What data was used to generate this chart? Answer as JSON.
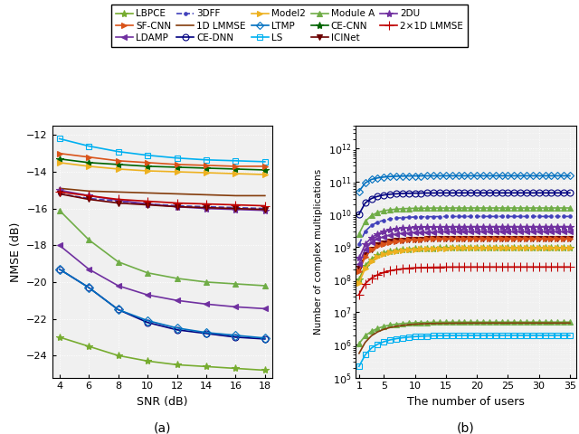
{
  "snr": [
    4,
    6,
    8,
    10,
    12,
    14,
    16,
    18
  ],
  "users": [
    1,
    2,
    3,
    4,
    5,
    6,
    7,
    8,
    9,
    10,
    11,
    12,
    13,
    14,
    15,
    16,
    17,
    18,
    19,
    20,
    21,
    22,
    23,
    24,
    25,
    26,
    27,
    28,
    29,
    30,
    31,
    32,
    33,
    34,
    35
  ],
  "nmse": {
    "LBPCE": [
      -23.0,
      -23.5,
      -24.0,
      -24.3,
      -24.5,
      -24.6,
      -24.7,
      -24.8
    ],
    "CE-DNN": [
      -19.3,
      -20.3,
      -21.5,
      -22.2,
      -22.6,
      -22.8,
      -23.0,
      -23.1
    ],
    "CE-CNN": [
      -13.3,
      -13.5,
      -13.6,
      -13.7,
      -13.75,
      -13.8,
      -13.85,
      -13.9
    ],
    "SF-CNN": [
      -13.0,
      -13.2,
      -13.4,
      -13.5,
      -13.6,
      -13.65,
      -13.7,
      -13.7
    ],
    "Model2": [
      -13.5,
      -13.7,
      -13.85,
      -13.95,
      -14.0,
      -14.05,
      -14.1,
      -14.15
    ],
    "ICINet": [
      -15.2,
      -15.5,
      -15.7,
      -15.8,
      -15.9,
      -15.95,
      -16.0,
      -16.05
    ],
    "LDAMP": [
      -18.0,
      -19.3,
      -20.2,
      -20.7,
      -21.0,
      -21.2,
      -21.35,
      -21.45
    ],
    "LTMP": [
      -19.3,
      -20.3,
      -21.5,
      -22.1,
      -22.5,
      -22.75,
      -22.9,
      -23.05
    ],
    "2DU": [
      -15.0,
      -15.3,
      -15.55,
      -15.75,
      -15.9,
      -16.0,
      -16.05,
      -16.1
    ],
    "3DFF": [
      -15.2,
      -15.45,
      -15.6,
      -15.75,
      -15.85,
      -15.9,
      -15.95,
      -16.0
    ],
    "LS": [
      -12.2,
      -12.6,
      -12.9,
      -13.1,
      -13.25,
      -13.35,
      -13.4,
      -13.45
    ],
    "1D_LMMSE": [
      -14.9,
      -15.05,
      -15.1,
      -15.15,
      -15.2,
      -15.25,
      -15.3,
      -15.3
    ],
    "2x1D_LMMSE": [
      -15.1,
      -15.3,
      -15.5,
      -15.6,
      -15.7,
      -15.75,
      -15.8,
      -15.85
    ],
    "Module_A": [
      -16.1,
      -17.7,
      -18.9,
      -19.5,
      -19.8,
      -20.0,
      -20.1,
      -20.2
    ]
  },
  "series_info": {
    "LBPCE": {
      "color": "#77ac30",
      "marker": "*",
      "linestyle": "-",
      "markersize": 6,
      "hollow": false
    },
    "CE-DNN": {
      "color": "#000080",
      "marker": "o",
      "linestyle": "-",
      "markersize": 5,
      "hollow": true
    },
    "CE-CNN": {
      "color": "#006400",
      "marker": "*",
      "linestyle": "-",
      "markersize": 6,
      "hollow": false
    },
    "SF-CNN": {
      "color": "#d95319",
      "marker": ">",
      "linestyle": "-",
      "markersize": 5,
      "hollow": false
    },
    "Model2": {
      "color": "#edb120",
      "marker": ">",
      "linestyle": "-",
      "markersize": 5,
      "hollow": false
    },
    "ICINet": {
      "color": "#6b0000",
      "marker": "v",
      "linestyle": "-",
      "markersize": 5,
      "hollow": false
    },
    "LDAMP": {
      "color": "#7030a0",
      "marker": "<",
      "linestyle": "-",
      "markersize": 5,
      "hollow": false
    },
    "LTMP": {
      "color": "#0070c0",
      "marker": "D",
      "linestyle": "-",
      "markersize": 5,
      "hollow": true
    },
    "2DU": {
      "color": "#7030a0",
      "marker": "*",
      "linestyle": "-",
      "markersize": 6,
      "hollow": false
    },
    "3DFF": {
      "color": "#4040bb",
      "marker": ".",
      "linestyle": "--",
      "markersize": 5,
      "hollow": false
    },
    "LS": {
      "color": "#00b0f0",
      "marker": "s",
      "linestyle": "-",
      "markersize": 5,
      "hollow": true
    },
    "1D_LMMSE": {
      "color": "#843c0c",
      "marker": "-",
      "linestyle": "-",
      "markersize": 4,
      "hollow": false
    },
    "2x1D_LMMSE": {
      "color": "#c00000",
      "marker": "+",
      "linestyle": "-",
      "markersize": 7,
      "hollow": false
    },
    "Module_A": {
      "color": "#70ad47",
      "marker": "^",
      "linestyle": "-",
      "markersize": 5,
      "hollow": false
    }
  },
  "complexity_data": {
    "LTMP": [
      50000000000.0,
      90000000000.0,
      115000000000.0,
      128000000000.0,
      136000000000.0,
      141000000000.0,
      144000000000.0,
      145500000000.0,
      146500000000.0,
      147200000000.0,
      147600000000.0,
      147900000000.0,
      148100000000.0,
      148200000000.0,
      148300000000.0,
      148400000000.0,
      148400000000.0,
      148500000000.0,
      148500000000.0,
      148500000000.0,
      148500000000.0,
      148500000000.0,
      148500000000.0,
      148500000000.0,
      148500000000.0,
      148500000000.0,
      148500000000.0,
      148500000000.0,
      148500000000.0,
      148500000000.0,
      148500000000.0,
      148500000000.0,
      148500000000.0,
      148500000000.0,
      148500000000.0
    ],
    "CE-DNN": [
      10000000000.0,
      22000000000.0,
      30000000000.0,
      35000000000.0,
      38500000000.0,
      40500000000.0,
      41800000000.0,
      42700000000.0,
      43300000000.0,
      43700000000.0,
      44000000000.0,
      44200000000.0,
      44300000000.0,
      44400000000.0,
      44500000000.0,
      44500000000.0,
      44600000000.0,
      44600000000.0,
      44600000000.0,
      44600000000.0,
      44600000000.0,
      44600000000.0,
      44600000000.0,
      44600000000.0,
      44600000000.0,
      44600000000.0,
      44600000000.0,
      44600000000.0,
      44600000000.0,
      44600000000.0,
      44600000000.0,
      44600000000.0,
      44600000000.0,
      44600000000.0,
      44600000000.0
    ],
    "Module_A": [
      2500000000.0,
      6000000000.0,
      9000000000.0,
      11200000000.0,
      12700000000.0,
      13600000000.0,
      14200000000.0,
      14600000000.0,
      14900000000.0,
      15100000000.0,
      15200000000.0,
      15300000000.0,
      15350000000.0,
      15380000000.0,
      15400000000.0,
      15410000000.0,
      15420000000.0,
      15420000000.0,
      15430000000.0,
      15430000000.0,
      15430000000.0,
      15430000000.0,
      15430000000.0,
      15430000000.0,
      15430000000.0,
      15430000000.0,
      15430000000.0,
      15430000000.0,
      15430000000.0,
      15430000000.0,
      15430000000.0,
      15430000000.0,
      15430000000.0,
      15430000000.0,
      15430000000.0
    ],
    "3DFF": [
      1200000000.0,
      3000000000.0,
      4500000000.0,
      5700000000.0,
      6500000000.0,
      7100000000.0,
      7500000000.0,
      7800000000.0,
      8000000000.0,
      8150000000.0,
      8250000000.0,
      8320000000.0,
      8370000000.0,
      8400000000.0,
      8430000000.0,
      8450000000.0,
      8460000000.0,
      8470000000.0,
      8475000000.0,
      8480000000.0,
      8480000000.0,
      8480000000.0,
      8480000000.0,
      8480000000.0,
      8480000000.0,
      8480000000.0,
      8480000000.0,
      8480000000.0,
      8480000000.0,
      8480000000.0,
      8480000000.0,
      8480000000.0,
      8480000000.0,
      8480000000.0,
      8480000000.0
    ],
    "2DU": [
      450000000.0,
      1200000000.0,
      1900000000.0,
      2500000000.0,
      2950000000.0,
      3300000000.0,
      3550000000.0,
      3730000000.0,
      3860000000.0,
      3950000000.0,
      4010000000.0,
      4050000000.0,
      4080000000.0,
      4100000000.0,
      4110000000.0,
      4120000000.0,
      4125000000.0,
      4130000000.0,
      4132000000.0,
      4134000000.0,
      4135000000.0,
      4136000000.0,
      4136000000.0,
      4137000000.0,
      4137000000.0,
      4137000000.0,
      4137000000.0,
      4137000000.0,
      4137000000.0,
      4137000000.0,
      4137000000.0,
      4137000000.0,
      4137000000.0,
      4137000000.0,
      4137000000.0
    ],
    "LDAMP": [
      300000000.0,
      850000000.0,
      1350000000.0,
      1750000000.0,
      2050000000.0,
      2280000000.0,
      2450000000.0,
      2580000000.0,
      2670000000.0,
      2740000000.0,
      2790000000.0,
      2820000000.0,
      2845000000.0,
      2860000000.0,
      2870000000.0,
      2875000000.0,
      2880000000.0,
      2885000000.0,
      2887000000.0,
      2889000000.0,
      2890000000.0,
      2891000000.0,
      2892000000.0,
      2892000000.0,
      2892000000.0,
      2892000000.0,
      2892000000.0,
      2892000000.0,
      2892000000.0,
      2892000000.0,
      2892000000.0,
      2892000000.0,
      2892000000.0,
      2892000000.0,
      2892000000.0
    ],
    "SF-CNN": [
      180000000.0,
      500000000.0,
      800000000.0,
      1050000000.0,
      1240000000.0,
      1380000000.0,
      1490000000.0,
      1570000000.0,
      1630000000.0,
      1670000000.0,
      1700000000.0,
      1720000000.0,
      1735000000.0,
      1744000000.0,
      1750000000.0,
      1754000000.0,
      1757000000.0,
      1759000000.0,
      1760000000.0,
      1761000000.0,
      1762000000.0,
      1762000000.0,
      1763000000.0,
      1763000000.0,
      1763000000.0,
      1763000000.0,
      1763000000.0,
      1763000000.0,
      1763000000.0,
      1763000000.0,
      1763000000.0,
      1763000000.0,
      1763000000.0,
      1763000000.0,
      1763000000.0
    ],
    "ICINet": [
      220000000.0,
      550000000.0,
      850000000.0,
      1100000000.0,
      1280000000.0,
      1420000000.0,
      1520000000.0,
      1590000000.0,
      1640000000.0,
      1675000000.0,
      1700000000.0,
      1715000000.0,
      1726000000.0,
      1733000000.0,
      1738000000.0,
      1741000000.0,
      1743000000.0,
      1745000000.0,
      1746000000.0,
      1747000000.0,
      1747000000.0,
      1748000000.0,
      1748000000.0,
      1748000000.0,
      1748000000.0,
      1748000000.0,
      1748000000.0,
      1748000000.0,
      1748000000.0,
      1748000000.0,
      1748000000.0,
      1748000000.0,
      1748000000.0,
      1748000000.0,
      1748000000.0
    ],
    "Model2": [
      80000000.0,
      220000000.0,
      370000000.0,
      500000000.0,
      600000000.0,
      680000000.0,
      740000000.0,
      790000000.0,
      825000000.0,
      850000000.0,
      870000000.0,
      883000000.0,
      893000000.0,
      900000000.0,
      905000000.0,
      909000000.0,
      911000000.0,
      913000000.0,
      914000000.0,
      915000000.0,
      916000000.0,
      916500000.0,
      917000000.0,
      917000000.0,
      917000000.0,
      917000000.0,
      917000000.0,
      917000000.0,
      917000000.0,
      917000000.0,
      917000000.0,
      917000000.0,
      917000000.0,
      917000000.0,
      917000000.0
    ],
    "LBPCE": [
      100000000.0,
      270000000.0,
      420000000.0,
      550000000.0,
      650000000.0,
      720000000.0,
      780000000.0,
      820000000.0,
      850000000.0,
      870000000.0,
      885000000.0,
      895000000.0,
      902000000.0,
      907000000.0,
      910000000.0,
      913000000.0,
      914500000.0,
      915500000.0,
      916200000.0,
      916700000.0,
      917000000.0,
      917300000.0,
      917500000.0,
      917600000.0,
      917700000.0,
      917800000.0,
      917800000.0,
      917800000.0,
      917800000.0,
      917800000.0,
      917800000.0,
      917800000.0,
      917800000.0,
      917800000.0,
      917800000.0
    ],
    "2x1D_LMMSE": [
      35000000.0,
      75000000.0,
      110000000.0,
      140000000.0,
      165000000.0,
      185000000.0,
      200000000.0,
      212000000.0,
      221000000.0,
      227000000.0,
      231000000.0,
      234000000.0,
      236000000.0,
      238000000.0,
      239000000.0,
      239500000.0,
      240000000.0,
      240300000.0,
      240500000.0,
      240700000.0,
      240800000.0,
      240900000.0,
      240900000.0,
      241000000.0,
      241000000.0,
      241000000.0,
      241000000.0,
      241000000.0,
      241000000.0,
      241000000.0,
      241000000.0,
      241000000.0,
      241000000.0,
      241000000.0,
      241000000.0
    ],
    "1D_LMMSE": [
      550000.0,
      1200000.0,
      1900000.0,
      2500000.0,
      3000000.0,
      3400000.0,
      3700000.0,
      3950000.0,
      4150000.0,
      4300000.0,
      4400000.0,
      4470000.0,
      4520000.0,
      4560000.0,
      4590000.0,
      4610000.0,
      4625000.0,
      4635000.0,
      4642000.0,
      4647000.0,
      4651000.0,
      4654000.0,
      4656000.0,
      4657000.0,
      4658000.0,
      4659000.0,
      4659000.0,
      4660000.0,
      4660000.0,
      4660000.0,
      4660000.0,
      4660000.0,
      4660000.0,
      4660000.0,
      4660000.0
    ],
    "Module_A_low": [
      1100000.0,
      1900000.0,
      2600000.0,
      3200000.0,
      3700000.0,
      4050000.0,
      4300000.0,
      4500000.0,
      4650000.0,
      4750000.0,
      4820000.0,
      4870000.0,
      4900000.0,
      4930000.0,
      4945000.0,
      4955000.0,
      4962000.0,
      4967000.0,
      4970000.0,
      4973000.0,
      4975000.0,
      4976000.0,
      4977000.0,
      4978000.0,
      4978000.0,
      4979000.0,
      4979000.0,
      4979000.0,
      4979000.0,
      4979000.0,
      4979000.0,
      4979000.0,
      4979000.0,
      4979000.0,
      4979000.0
    ],
    "LS": [
      220000.0,
      500000.0,
      800000.0,
      1050000.0,
      1250000.0,
      1420000.0,
      1550000.0,
      1650000.0,
      1730000.0,
      1790000.0,
      1840000.0,
      1870000.0,
      1895000.0,
      1912000.0,
      1924000.0,
      1932000.0,
      1938000.0,
      1943000.0,
      1946000.0,
      1949000.0,
      1950000.0,
      1952000.0,
      1953000.0,
      1954000.0,
      1954000.0,
      1955000.0,
      1955000.0,
      1955000.0,
      1956000.0,
      1956000.0,
      1956000.0,
      1956000.0,
      1956000.0,
      1956000.0,
      1956000.0
    ]
  },
  "nmse_plot_order": [
    "LS",
    "CE-CNN",
    "SF-CNN",
    "Model2",
    "1D_LMMSE",
    "3DFF",
    "2DU",
    "ICINet",
    "2x1D_LMMSE",
    "Module_A",
    "LDAMP",
    "CE-DNN",
    "LTMP",
    "LBPCE"
  ],
  "comp_plot_order": [
    "LS",
    "Module_A_low",
    "1D_LMMSE",
    "2x1D_LMMSE",
    "LBPCE",
    "Model2",
    "ICINet",
    "SF-CNN",
    "LDAMP",
    "2DU",
    "3DFF",
    "Module_A",
    "CE-DNN",
    "LTMP"
  ],
  "legend_entries": [
    {
      "label": "LBPCE",
      "color": "#77ac30",
      "marker": "*",
      "linestyle": "-",
      "markersize": 6,
      "hollow": false
    },
    {
      "label": "SF-CNN",
      "color": "#d95319",
      "marker": ">",
      "linestyle": "-",
      "markersize": 5,
      "hollow": false
    },
    {
      "label": "LDAMP",
      "color": "#7030a0",
      "marker": "<",
      "linestyle": "-",
      "markersize": 5,
      "hollow": false
    },
    {
      "label": "3DFF",
      "color": "#4040bb",
      "marker": ".",
      "linestyle": "--",
      "markersize": 5,
      "hollow": false
    },
    {
      "label": "1D LMMSE",
      "color": "#843c0c",
      "marker": "|",
      "linestyle": "-",
      "markersize": 5,
      "hollow": false
    },
    {
      "label": "CE-DNN",
      "color": "#000080",
      "marker": "o",
      "linestyle": "-",
      "markersize": 5,
      "hollow": true
    },
    {
      "label": "Model2",
      "color": "#edb120",
      "marker": ">",
      "linestyle": "-",
      "markersize": 5,
      "hollow": false
    },
    {
      "label": "LTMP",
      "color": "#0070c0",
      "marker": "D",
      "linestyle": "-",
      "markersize": 4,
      "hollow": true
    },
    {
      "label": "LS",
      "color": "#00b0f0",
      "marker": "s",
      "linestyle": "-",
      "markersize": 5,
      "hollow": true
    },
    {
      "label": "Module A",
      "color": "#70ad47",
      "marker": "^",
      "linestyle": "-",
      "markersize": 5,
      "hollow": false
    },
    {
      "label": "CE-CNN",
      "color": "#006400",
      "marker": "*",
      "linestyle": "-",
      "markersize": 6,
      "hollow": false
    },
    {
      "label": "ICINet",
      "color": "#6b0000",
      "marker": "v",
      "linestyle": "-",
      "markersize": 5,
      "hollow": false
    },
    {
      "label": "2DU",
      "color": "#7030a0",
      "marker": "*",
      "linestyle": "-",
      "markersize": 6,
      "hollow": false
    },
    {
      "label": "2×1D LMMSE",
      "color": "#c00000",
      "marker": "+",
      "linestyle": "-",
      "markersize": 7,
      "hollow": false
    }
  ],
  "fig_background": "#ffffff",
  "ax_background": "#f0f0f0",
  "grid_color": "#ffffff",
  "grid_linestyle": ":",
  "subplot_a_label": "(a)",
  "subplot_b_label": "(b)"
}
